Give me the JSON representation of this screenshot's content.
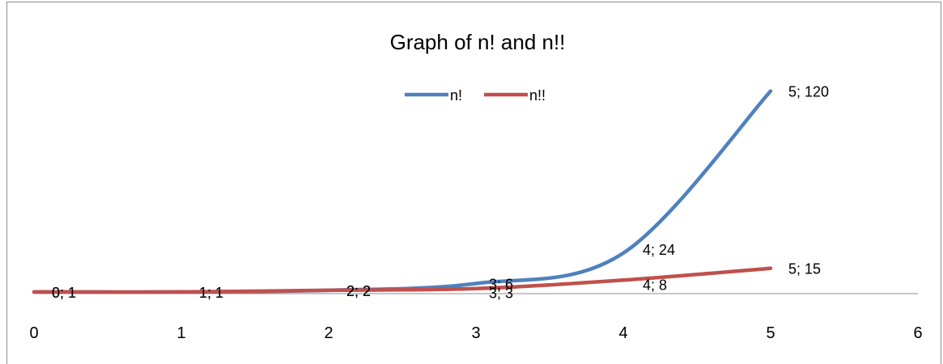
{
  "chart_data": {
    "type": "line",
    "title": "Graph of n! and n!!",
    "xlabel": "",
    "ylabel": "",
    "xlim": [
      0,
      6
    ],
    "ylim": [
      0,
      150
    ],
    "x_ticks": [
      "0",
      "1",
      "2",
      "3",
      "4",
      "5",
      "6"
    ],
    "grid": false,
    "smooth": true,
    "legend_position": "top-center",
    "series": [
      {
        "name": "n!",
        "color": "#4f81bd",
        "x": [
          0,
          1,
          2,
          3,
          4,
          5
        ],
        "y": [
          1,
          1,
          2,
          6,
          24,
          120
        ],
        "labels": [
          "0; 1",
          "1; 1",
          "2; 2",
          "3; 6",
          "4; 24",
          "5; 120"
        ]
      },
      {
        "name": "n!!",
        "color": "#c0504d",
        "x": [
          0,
          1,
          2,
          3,
          4,
          5
        ],
        "y": [
          1,
          1,
          2,
          3,
          8,
          15
        ],
        "labels": [
          "0; 1",
          "1; 1",
          "2; 2",
          "3; 3",
          "4; 8",
          "5; 15"
        ]
      }
    ]
  }
}
